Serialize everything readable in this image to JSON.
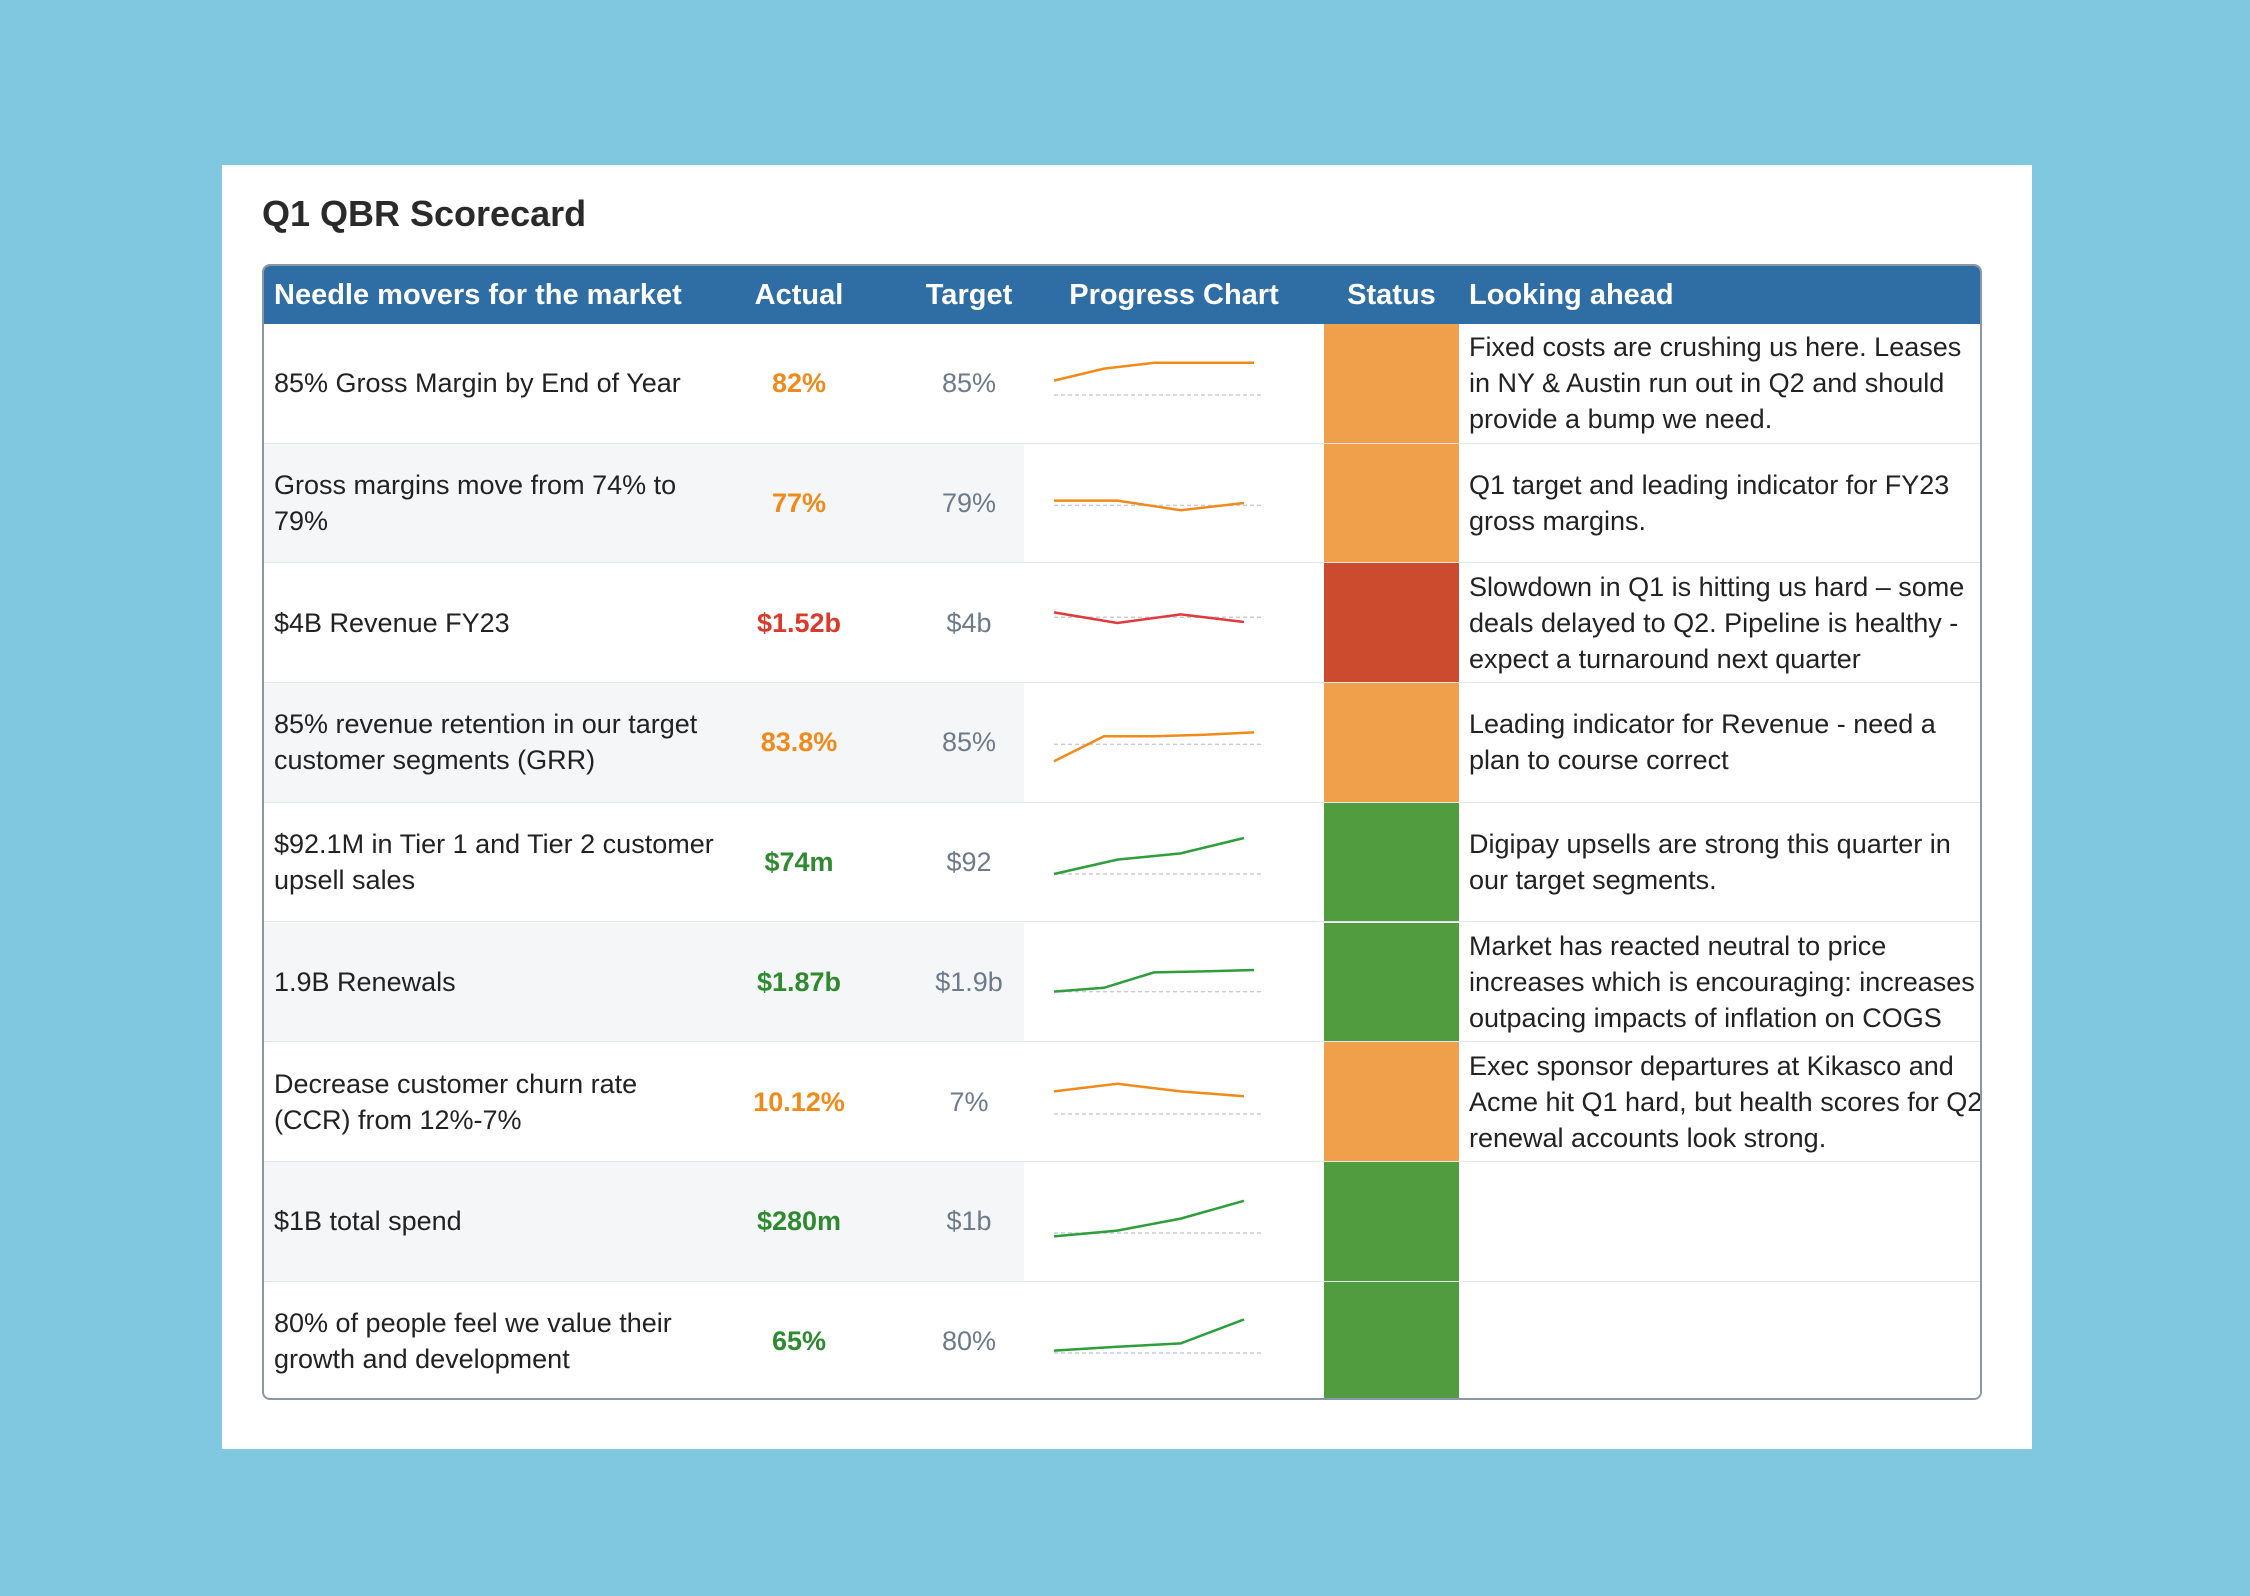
{
  "title": "Q1 QBR Scorecard",
  "headers": {
    "metric": "Needle movers for the market",
    "actual": "Actual",
    "target": "Target",
    "chart": "Progress Chart",
    "status": "Status",
    "ahead": "Looking ahead"
  },
  "colors": {
    "header": "#2f6da5",
    "orange": "#f0a04b",
    "red": "#cc4a2e",
    "green": "#529c40",
    "actual_orange": "#f08a1a",
    "actual_red": "#d93a2b",
    "actual_green": "#2f8a2f",
    "line_orange": "#f08a1a",
    "line_red": "#e03a3a",
    "line_green": "#2e9e3a"
  },
  "rows": [
    {
      "metric": "85% Gross Margin by End of Year",
      "actual": "82%",
      "target": "85%",
      "status": "orange",
      "trend": [
        0.55,
        0.8,
        0.92,
        0.92,
        0.92
      ],
      "baseline": 0.25,
      "ahead": "Fixed costs are crushing us here. Leases in NY & Austin run out in Q2 and should provide a bump we need."
    },
    {
      "metric": "Gross margins move from 74% to 79%",
      "actual": "77%",
      "target": "79%",
      "status": "orange",
      "trend": [
        0.55,
        0.55,
        0.35,
        0.5
      ],
      "baseline": 0.45,
      "ahead": "Q1 target and leading indicator for FY23 gross margins."
    },
    {
      "metric": "$4B Revenue FY23",
      "actual": "$1.52b",
      "target": "$4b",
      "status": "red",
      "trend": [
        0.72,
        0.5,
        0.68,
        0.52
      ],
      "baseline": 0.62,
      "ahead": "Slowdown in Q1 is hitting us hard – some deals delayed to Q2. Pipeline is healthy - expect a turnaround next quarter"
    },
    {
      "metric": "85% revenue retention in our target customer segments (GRR)",
      "actual": "83.8%",
      "target": "85%",
      "status": "orange",
      "trend": [
        0.1,
        0.62,
        0.62,
        0.65,
        0.7
      ],
      "baseline": 0.45,
      "ahead": "Leading indicator for Revenue - need a plan to course correct"
    },
    {
      "metric": "$92.1M in Tier 1 and Tier 2 customer upsell sales",
      "actual": "$74m",
      "target": "$92",
      "status": "green",
      "trend": [
        0.25,
        0.55,
        0.68,
        1.0
      ],
      "baseline": 0.25,
      "ahead": "Digipay upsells are strong this quarter in our target segments."
    },
    {
      "metric": "1.9B Renewals",
      "actual": "$1.87b",
      "target": "$1.9b",
      "status": "green",
      "trend": [
        0.3,
        0.38,
        0.7,
        0.72,
        0.75
      ],
      "baseline": 0.3,
      "ahead": "Market has reacted neutral to price increases which is encouraging: increases outpacing impacts of inflation on COGS"
    },
    {
      "metric": "Decrease customer churn rate (CCR) from 12%-7%",
      "actual": "10.12%",
      "target": "7%",
      "status": "orange",
      "trend": [
        0.72,
        0.88,
        0.72,
        0.62
      ],
      "baseline": 0.25,
      "ahead": "Exec sponsor departures at Kikasco and Acme hit Q1 hard, but health scores for Q2 renewal accounts look strong."
    },
    {
      "metric": "$1B total spend",
      "actual": "$280m",
      "target": "$1b",
      "status": "green",
      "trend": [
        0.18,
        0.3,
        0.55,
        0.92
      ],
      "baseline": 0.25,
      "ahead": ""
    },
    {
      "metric": "80% of people feel we value their growth and development",
      "actual": "65%",
      "target": "80%",
      "status": "green",
      "trend": [
        0.3,
        0.38,
        0.45,
        0.95
      ],
      "baseline": 0.25,
      "ahead": ""
    }
  ]
}
